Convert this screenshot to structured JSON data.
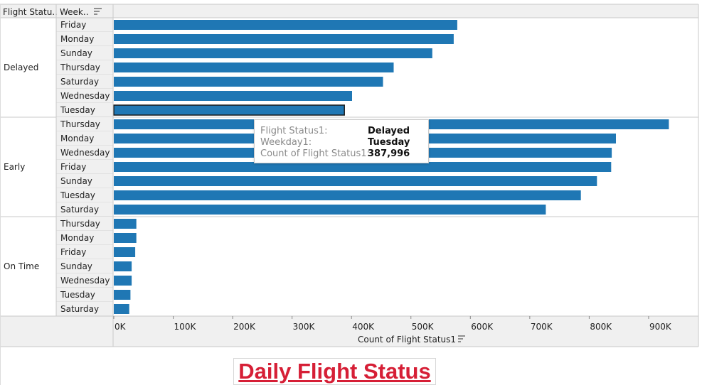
{
  "header": {
    "col1": "Flight Statu..",
    "col2": "Week.."
  },
  "colors": {
    "bar": "#1f77b4",
    "selected_outline": "#1a1a1a",
    "header_bg": "#f0f0f0",
    "border": "#c9c9c9",
    "title": "#d61f36"
  },
  "chart_data": {
    "type": "bar",
    "orientation": "horizontal",
    "xlabel": "Count of Flight Status1",
    "xlim": [
      0,
      980000
    ],
    "x_ticks": [
      "0K",
      "100K",
      "200K",
      "300K",
      "400K",
      "500K",
      "600K",
      "700K",
      "800K",
      "900K"
    ],
    "grid": false,
    "groups": [
      {
        "name": "Delayed",
        "rows": [
          {
            "label": "Friday",
            "value": 578000
          },
          {
            "label": "Monday",
            "value": 572000
          },
          {
            "label": "Sunday",
            "value": 536000
          },
          {
            "label": "Thursday",
            "value": 471000
          },
          {
            "label": "Saturday",
            "value": 453000
          },
          {
            "label": "Wednesday",
            "value": 401000
          },
          {
            "label": "Tuesday",
            "value": 387996,
            "selected": true
          }
        ]
      },
      {
        "name": "Early",
        "rows": [
          {
            "label": "Thursday",
            "value": 934000
          },
          {
            "label": "Monday",
            "value": 845000
          },
          {
            "label": "Wednesday",
            "value": 838000
          },
          {
            "label": "Friday",
            "value": 837000
          },
          {
            "label": "Sunday",
            "value": 813000
          },
          {
            "label": "Tuesday",
            "value": 786000
          },
          {
            "label": "Saturday",
            "value": 727000
          }
        ]
      },
      {
        "name": "On Time",
        "rows": [
          {
            "label": "Thursday",
            "value": 38000
          },
          {
            "label": "Monday",
            "value": 38000
          },
          {
            "label": "Friday",
            "value": 36000
          },
          {
            "label": "Sunday",
            "value": 30000
          },
          {
            "label": "Wednesday",
            "value": 30000
          },
          {
            "label": "Tuesday",
            "value": 28000
          },
          {
            "label": "Saturday",
            "value": 26000
          }
        ]
      }
    ]
  },
  "tooltip": {
    "rows": [
      {
        "key": "Flight Status1:",
        "value": "Delayed"
      },
      {
        "key": "Weekday1:",
        "value": "Tuesday"
      },
      {
        "key": "Count of Flight Status1:",
        "value": "387,996"
      }
    ]
  },
  "title": "Daily Flight Status"
}
